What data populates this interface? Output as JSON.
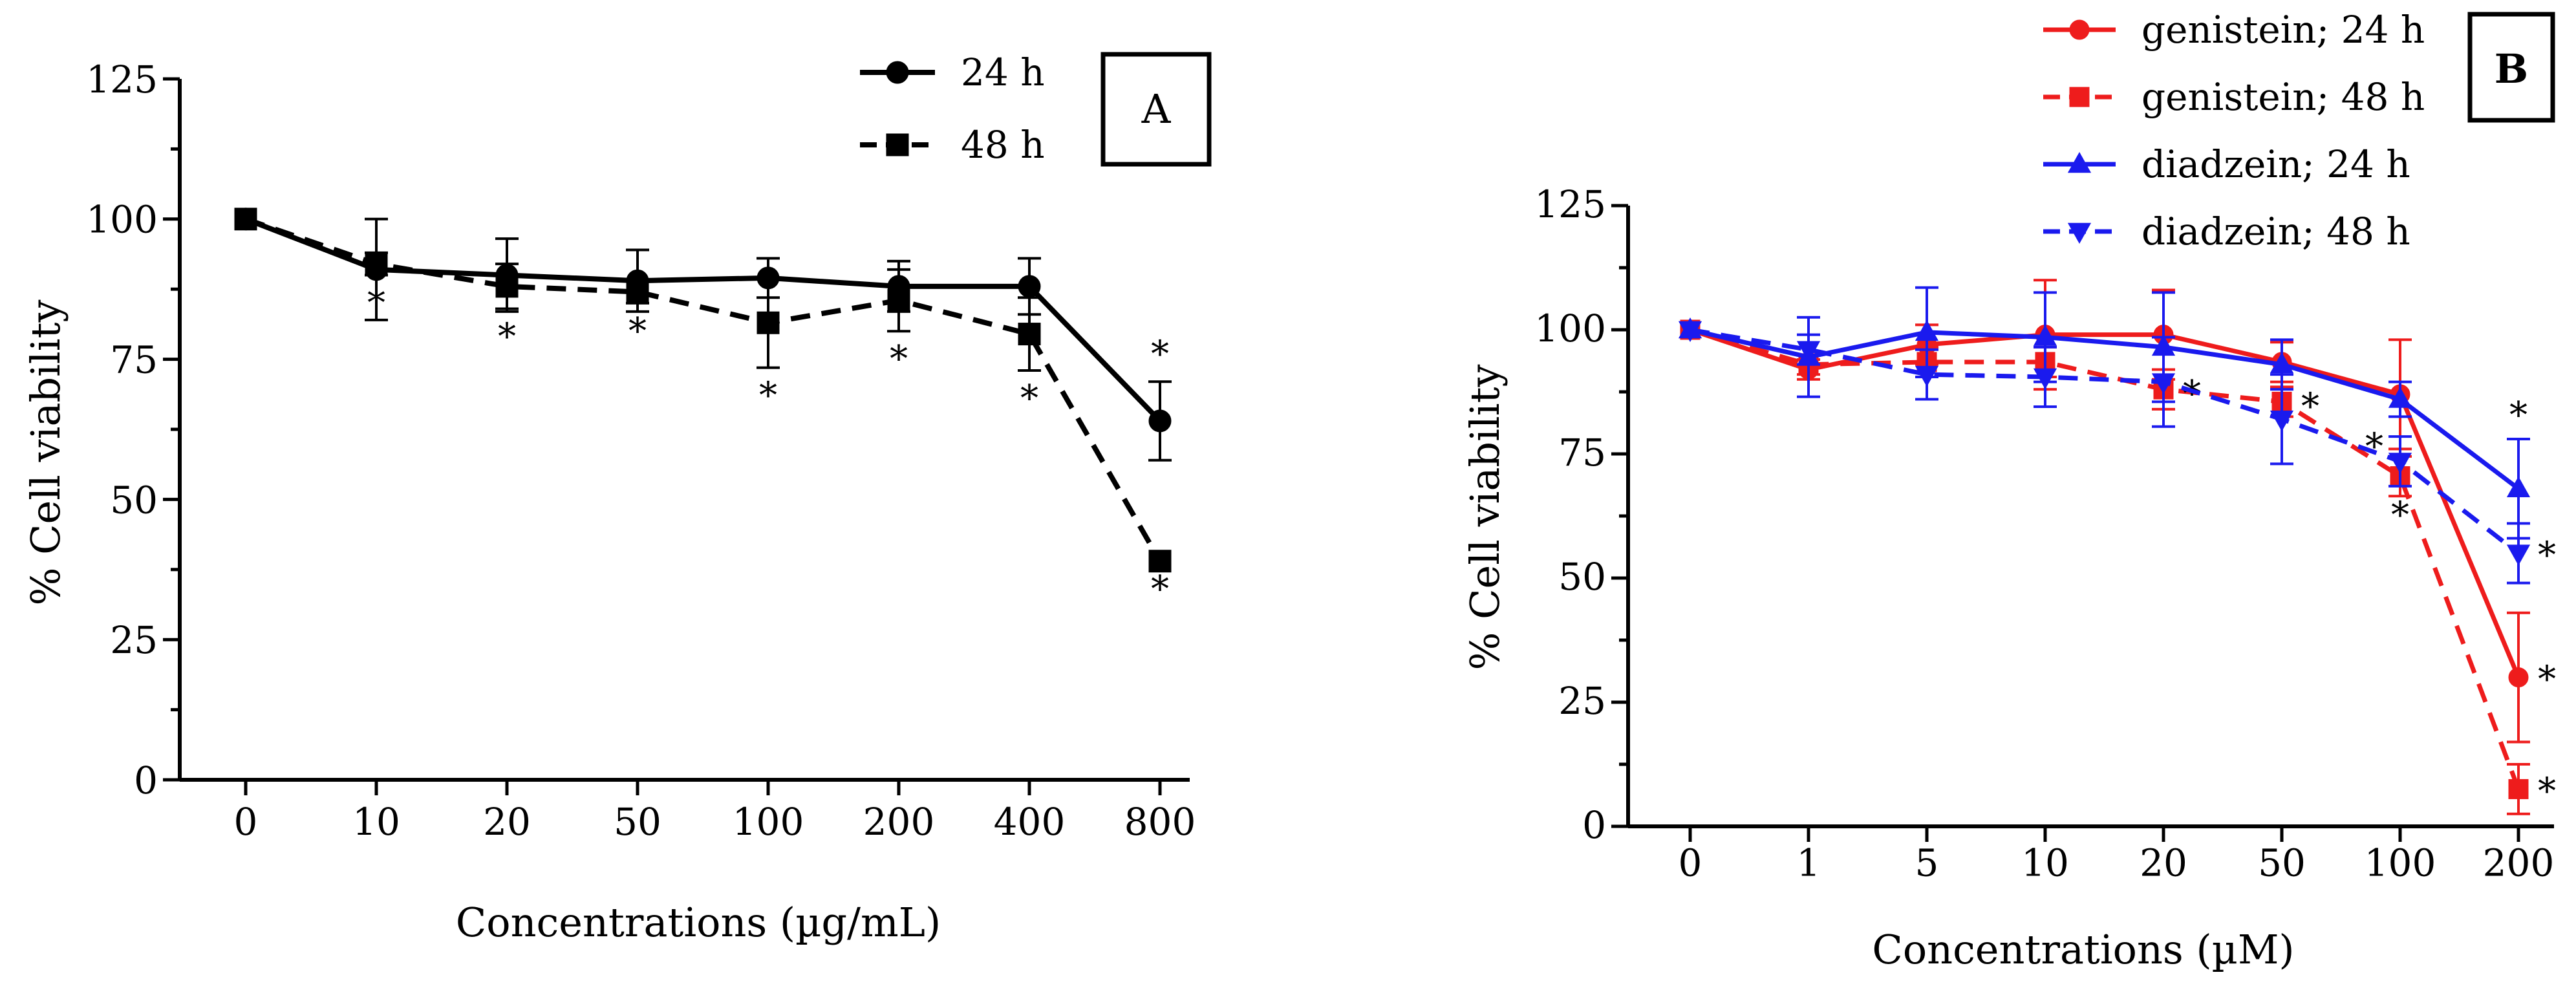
{
  "chart_data": [
    {
      "type": "line",
      "panel": "A",
      "title": "",
      "xlabel": "Concentrations (µg/mL)",
      "ylabel": "% Cell viability",
      "ylim": [
        0,
        125
      ],
      "yticks": [
        "0",
        "25",
        "50",
        "75",
        "100",
        "125"
      ],
      "categories": [
        "0",
        "10",
        "20",
        "50",
        "100",
        "200",
        "400",
        "800"
      ],
      "legend_position": "top-right",
      "series": [
        {
          "name": "24 h",
          "color": "#000000",
          "dashed": false,
          "marker": "circle",
          "values": [
            100,
            91,
            90,
            89,
            89.5,
            88,
            88,
            64
          ],
          "errors": [
            0,
            9,
            6.5,
            5.5,
            3.5,
            4.5,
            5,
            7
          ],
          "stars": [
            "",
            "",
            "",
            "",
            "",
            "",
            "",
            "*"
          ]
        },
        {
          "name": "48 h",
          "color": "#000000",
          "dashed": true,
          "marker": "square",
          "values": [
            100,
            92,
            88,
            87,
            81.5,
            85.5,
            79.5,
            39
          ],
          "errors": [
            0,
            2,
            4,
            2,
            8,
            5.5,
            6.5,
            0
          ],
          "stars": [
            "",
            "*",
            "*",
            "*",
            "*",
            "*",
            "*",
            "*"
          ]
        }
      ]
    },
    {
      "type": "line",
      "panel": "B",
      "title": "",
      "xlabel": "Concentrations (µM)",
      "ylabel": "% Cell viability",
      "ylim": [
        0,
        125
      ],
      "yticks": [
        "0",
        "25",
        "50",
        "75",
        "100",
        "125"
      ],
      "categories": [
        "0",
        "1",
        "5",
        "10",
        "20",
        "50",
        "100",
        "200"
      ],
      "legend_position": "top-left",
      "series": [
        {
          "name": "genistein; 24 h",
          "color": "#ee1c1c",
          "dashed": false,
          "marker": "circle",
          "values": [
            100,
            92,
            97,
            99,
            99,
            93.5,
            87,
            30
          ],
          "errors": [
            0,
            2,
            4,
            11,
            9,
            4,
            11,
            13
          ],
          "stars": [
            "",
            "",
            "",
            "",
            "",
            "",
            "",
            "*"
          ]
        },
        {
          "name": "genistein; 48 h",
          "color": "#ee1c1c",
          "dashed": true,
          "marker": "square",
          "values": [
            100,
            93,
            93.5,
            93.5,
            88,
            85.5,
            70.5,
            7.5
          ],
          "errors": [
            0,
            2,
            3,
            3,
            4,
            3,
            4,
            5
          ],
          "stars": [
            "",
            "",
            "",
            "",
            "*",
            "*",
            "*",
            "*"
          ]
        },
        {
          "name": "diadzein; 24 h",
          "color": "#1a1aee",
          "dashed": false,
          "marker": "triangle-up",
          "values": [
            100,
            94.5,
            99.5,
            98.5,
            96.5,
            93,
            86,
            68
          ],
          "errors": [
            0,
            8,
            9,
            9,
            11,
            5,
            3.5,
            10
          ],
          "stars": [
            "",
            "",
            "",
            "",
            "",
            "",
            "",
            "*"
          ]
        },
        {
          "name": "diadzein; 48 h",
          "color": "#1a1aee",
          "dashed": true,
          "marker": "triangle-down",
          "values": [
            100,
            96,
            91,
            90.5,
            89.5,
            82,
            73.5,
            55
          ],
          "errors": [
            0,
            3,
            5,
            6,
            9,
            9,
            5,
            6
          ],
          "stars": [
            "",
            "",
            "",
            "",
            "",
            "",
            "*",
            "*"
          ]
        }
      ]
    }
  ]
}
